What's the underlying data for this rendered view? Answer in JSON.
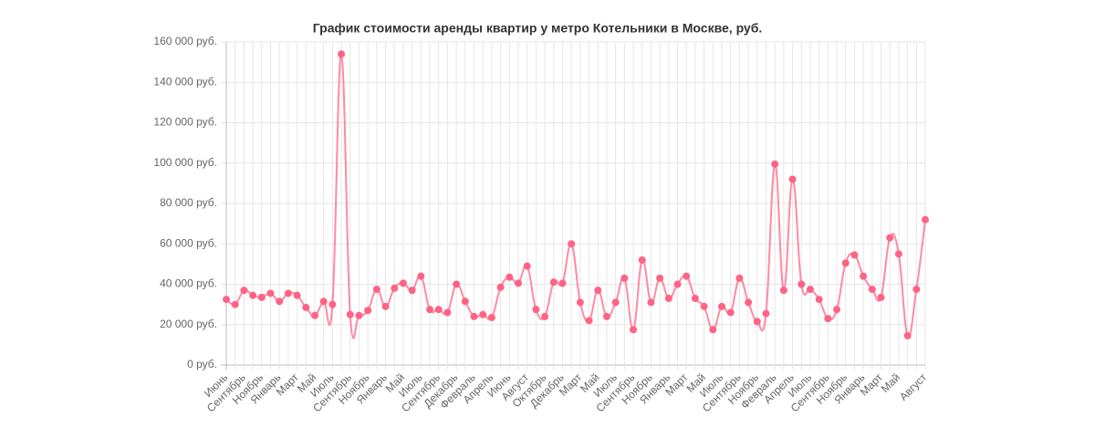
{
  "chart_data": {
    "type": "line",
    "title": "График стоимости аренды квартир у метро Котельники в Москве, руб.",
    "categories": [
      "Июнь",
      null,
      "Сентябрь",
      null,
      "Ноябрь",
      null,
      "Январь",
      null,
      "Март",
      null,
      "Май",
      null,
      "Июль",
      null,
      "Сентябрь",
      null,
      "Ноябрь",
      null,
      "Январь",
      null,
      "Май",
      null,
      "Июль",
      null,
      "Сентябрь",
      null,
      "Декабрь",
      null,
      "Февраль",
      null,
      "Апрель",
      null,
      "Июнь",
      null,
      "Август",
      null,
      "Октябрь",
      null,
      "Декабрь",
      null,
      "Март",
      null,
      "Май",
      null,
      "Июль",
      null,
      "Сентябрь",
      null,
      "Ноябрь",
      null,
      "Январь",
      null,
      "Март",
      null,
      "Май",
      null,
      "Июль",
      null,
      "Сентябрь",
      null,
      "Ноябрь",
      null,
      "Февраль",
      null,
      "Апрель",
      null,
      "Июль",
      null,
      "Сентябрь",
      null,
      "Ноябрь",
      null,
      "Январь",
      null,
      "Март",
      null,
      "Май",
      null,
      null,
      "Август"
    ],
    "series": [
      {
        "color": "#ff6384",
        "values": [
          32500,
          30000,
          37000,
          34500,
          33500,
          35500,
          31500,
          35500,
          34500,
          28500,
          24500,
          31500,
          30000,
          154000,
          25000,
          24500,
          27000,
          37500,
          29000,
          38000,
          40500,
          37000,
          44000,
          27500,
          27500,
          26000,
          40000,
          31500,
          24000,
          25000,
          23500,
          38500,
          43500,
          40500,
          49000,
          27500,
          24000,
          41000,
          40500,
          60000,
          31000,
          22000,
          37000,
          24000,
          31000,
          43000,
          17500,
          52000,
          31000,
          43000,
          33000,
          40000,
          44000,
          33000,
          29000,
          17500,
          29000,
          26000,
          43000,
          31000,
          21500,
          25500,
          99500,
          37000,
          92000,
          40000,
          37500,
          32500,
          23000,
          27500,
          50500,
          54500,
          44000,
          37500,
          33500,
          63000,
          55000,
          14500,
          37500,
          72000
        ]
      }
    ],
    "ylim": [
      0,
      160000
    ],
    "yticks": [
      {
        "value": 0,
        "label": "0 руб."
      },
      {
        "value": 20000,
        "label": "20 000 руб."
      },
      {
        "value": 40000,
        "label": "40 000 руб."
      },
      {
        "value": 60000,
        "label": "60 000 руб."
      },
      {
        "value": 80000,
        "label": "80 000 руб."
      },
      {
        "value": 100000,
        "label": "100 000 руб."
      },
      {
        "value": 120000,
        "label": "120 000 руб."
      },
      {
        "value": 140000,
        "label": "140 000 руб."
      },
      {
        "value": 160000,
        "label": "160 000 руб."
      }
    ],
    "grid": true
  }
}
